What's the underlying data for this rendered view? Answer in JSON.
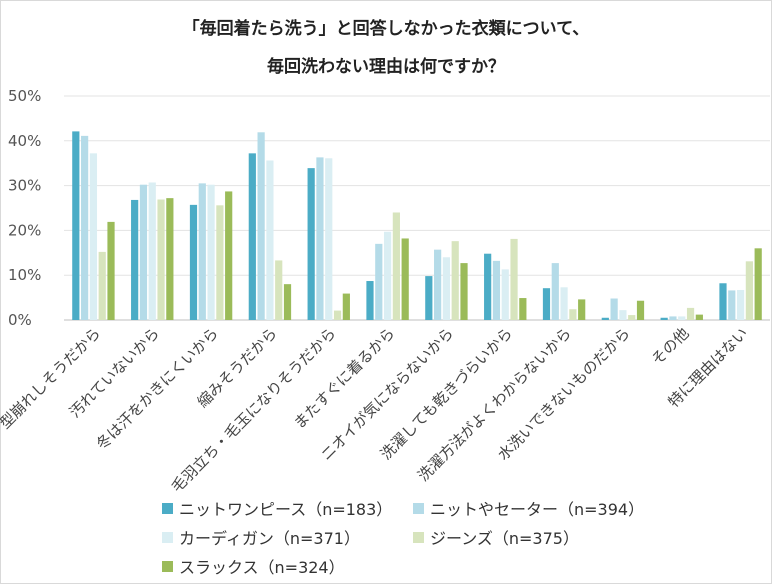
{
  "chart_data": {
    "type": "bar",
    "title_line1": "「毎回着たら洗う」と回答しなかった衣類について、",
    "title_line2": "毎回洗わない理由は何ですか？",
    "categories": [
      "型崩れしそうだから",
      "汚れていないから",
      "冬は汗をかきにくいから",
      "縮みそうだから",
      "毛羽立ち・毛玉になりそうだから",
      "またすぐに着るから",
      "ニオイが気にならないから",
      "洗濯しても乾きづらいから",
      "洗濯方法がよくわからないから",
      "水洗いできないものだから",
      "その他",
      "特に理由はない"
    ],
    "y_ticks": [
      "0%",
      "10%",
      "20%",
      "30%",
      "40%",
      "50%"
    ],
    "ylim": [
      0,
      50
    ],
    "grid": true,
    "legend_position": "bottom",
    "series": [
      {
        "name": "ニットワンピース（n=183）",
        "color": "#4bacc6",
        "values": [
          42.1,
          26.8,
          25.7,
          37.2,
          33.9,
          8.7,
          9.8,
          14.8,
          7.1,
          0.5,
          0.5,
          8.2
        ]
      },
      {
        "name": "ニットやセーター（n=394）",
        "color": "#b4dbe8",
        "values": [
          41.1,
          30.2,
          30.5,
          41.9,
          36.3,
          17.0,
          15.7,
          13.2,
          12.7,
          4.8,
          0.8,
          6.6
        ]
      },
      {
        "name": "カーディガン（n=371）",
        "color": "#daeef3",
        "values": [
          37.2,
          30.7,
          30.2,
          35.6,
          36.1,
          19.7,
          14.0,
          11.3,
          7.3,
          2.2,
          0.8,
          6.7
        ]
      },
      {
        "name": "ジーンズ（n=375）",
        "color": "#d7e4bd",
        "values": [
          15.2,
          26.9,
          25.6,
          13.3,
          2.1,
          24.0,
          17.6,
          18.1,
          2.4,
          1.1,
          2.7,
          13.1
        ]
      },
      {
        "name": "スラックス（n=324）",
        "color": "#9bbb59",
        "values": [
          21.9,
          27.2,
          28.7,
          8.0,
          5.9,
          18.2,
          12.7,
          4.9,
          4.6,
          4.3,
          1.2,
          16.0
        ]
      }
    ]
  }
}
